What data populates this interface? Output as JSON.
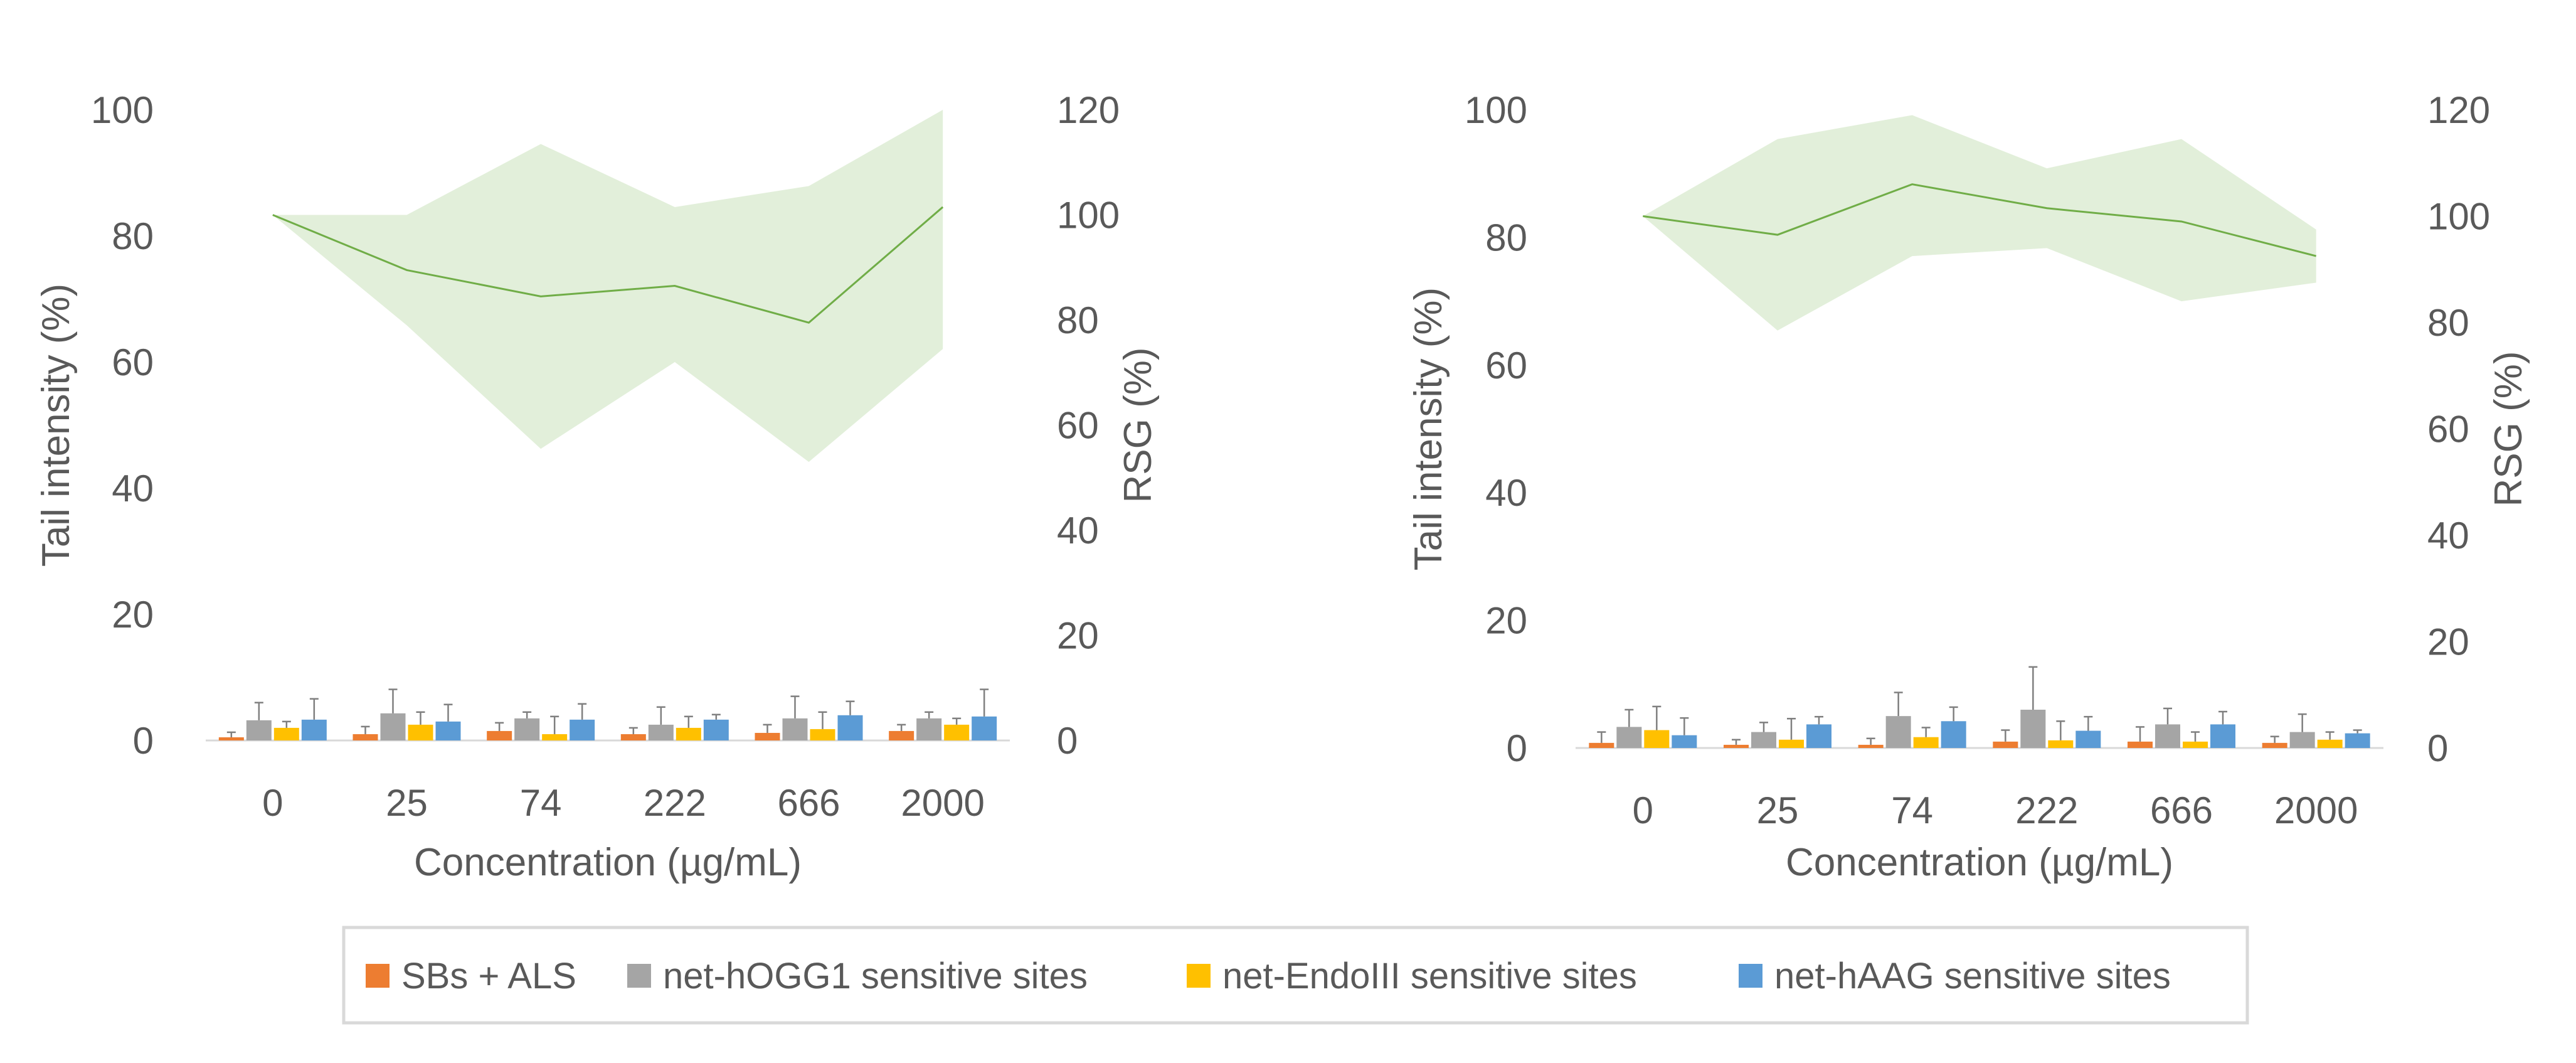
{
  "legend": {
    "items": [
      {
        "label": "SBs + ALS",
        "color": "#ED7D31"
      },
      {
        "label": "net-hOGG1 sensitive sites",
        "color": "#A5A5A5"
      },
      {
        "label": "net-EndoIII sensitive sites",
        "color": "#FFC000"
      },
      {
        "label": "net-hAAG sensitive sites",
        "color": "#5B9BD5"
      }
    ]
  },
  "colors": {
    "rsg_line": "#70AD47",
    "rsg_band": "#E2EFDA",
    "axis_text": "#595959",
    "error_bar": "#7F7F7F"
  },
  "chart_data": [
    {
      "type": "bar",
      "title": "",
      "categories": [
        "0",
        "25",
        "74",
        "222",
        "666",
        "2000"
      ],
      "xlabel": "Concentration (µg/mL)",
      "ylabel": "Tail intensity (%)",
      "ylim": [
        0,
        100
      ],
      "yticks": [
        "0",
        "20",
        "40",
        "60",
        "80",
        "100"
      ],
      "y2label": "RSG (%)",
      "y2lim": [
        0,
        120
      ],
      "y2ticks": [
        "0",
        "20",
        "40",
        "60",
        "80",
        "100",
        "120"
      ],
      "series": [
        {
          "name": "SBs + ALS",
          "values": [
            0.5,
            1.0,
            1.5,
            1.0,
            1.2,
            1.5
          ],
          "errors": [
            0.8,
            1.2,
            1.3,
            1.0,
            1.3,
            1.0
          ]
        },
        {
          "name": "net-hOGG1 sensitive sites",
          "values": [
            3.2,
            4.3,
            3.5,
            2.5,
            3.5,
            3.5
          ],
          "errors": [
            2.8,
            3.8,
            1.0,
            2.8,
            3.5,
            1.0
          ]
        },
        {
          "name": "net-EndoIII sensitive sites",
          "values": [
            2.0,
            2.5,
            1.0,
            2.0,
            1.8,
            2.5
          ],
          "errors": [
            1.0,
            2.0,
            2.8,
            1.8,
            2.7,
            1.0
          ]
        },
        {
          "name": "net-hAAG sensitive sites",
          "values": [
            3.3,
            3.0,
            3.3,
            3.3,
            4.0,
            3.8
          ],
          "errors": [
            3.3,
            2.7,
            2.5,
            0.8,
            2.2,
            4.3
          ]
        }
      ],
      "rsg": {
        "name": "RSG (%)",
        "mean": [
          100,
          89.5,
          84.5,
          86.5,
          79.5,
          101.5
        ],
        "upper": [
          100,
          100,
          113.5,
          101.5,
          105.5,
          120
        ],
        "lower": [
          100,
          79,
          55.5,
          72,
          53,
          74.5
        ]
      }
    },
    {
      "type": "bar",
      "title": "",
      "categories": [
        "0",
        "25",
        "74",
        "222",
        "666",
        "2000"
      ],
      "xlabel": "Concentration (µg/mL)",
      "ylabel": "Tail intensity (%)",
      "ylim": [
        0,
        100
      ],
      "yticks": [
        "0",
        "20",
        "40",
        "60",
        "80",
        "100"
      ],
      "y2label": "RSG (%)",
      "y2lim": [
        0,
        120
      ],
      "y2ticks": [
        "0",
        "20",
        "40",
        "60",
        "80",
        "100",
        "120"
      ],
      "series": [
        {
          "name": "SBs + ALS",
          "values": [
            0.8,
            0.5,
            0.5,
            1.0,
            1.0,
            0.8
          ],
          "errors": [
            1.7,
            0.8,
            1.0,
            1.8,
            2.3,
            1.0
          ]
        },
        {
          "name": "net-hOGG1 sensitive sites",
          "values": [
            3.3,
            2.5,
            5.0,
            6.0,
            3.7,
            2.5
          ],
          "errors": [
            2.7,
            1.5,
            3.7,
            6.7,
            2.5,
            2.8
          ]
        },
        {
          "name": "net-EndoIII sensitive sites",
          "values": [
            2.8,
            1.3,
            1.7,
            1.2,
            1.0,
            1.3
          ],
          "errors": [
            3.7,
            3.3,
            1.5,
            3.0,
            1.5,
            1.2
          ]
        },
        {
          "name": "net-hAAG sensitive sites",
          "values": [
            2.0,
            3.7,
            4.2,
            2.7,
            3.7,
            2.3
          ],
          "errors": [
            2.7,
            1.2,
            2.2,
            2.2,
            2.0,
            0.5
          ]
        }
      ],
      "rsg": {
        "name": "RSG (%)",
        "mean": [
          100,
          96.5,
          106,
          101.5,
          99,
          92.5
        ],
        "upper": [
          100,
          114.5,
          119,
          109,
          114.5,
          97.5
        ],
        "lower": [
          100,
          78.5,
          92.5,
          94,
          84,
          87.5
        ]
      }
    }
  ]
}
